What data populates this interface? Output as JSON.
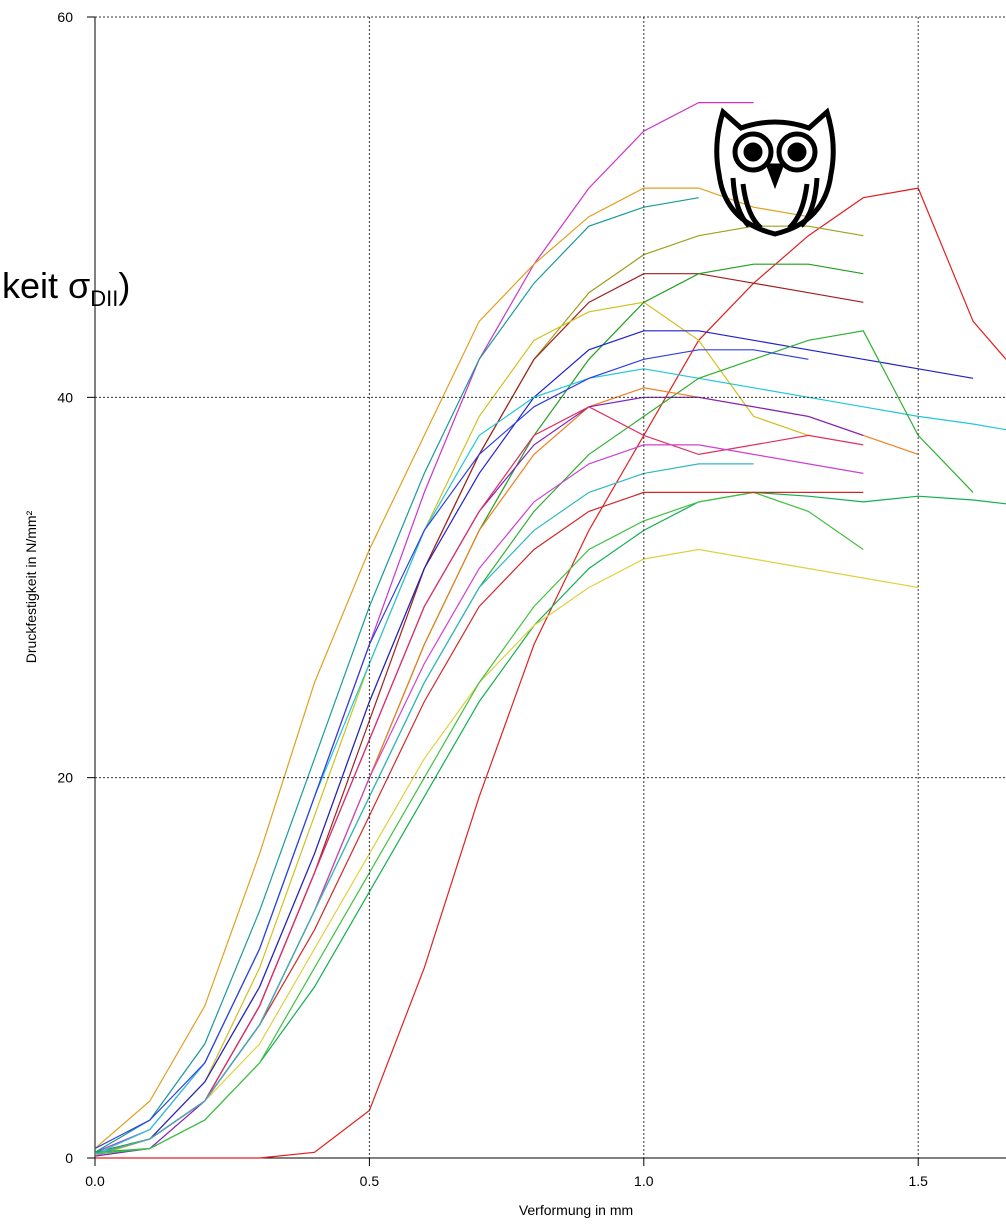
{
  "chart_data": {
    "type": "line",
    "xlabel": "Verformung in mm",
    "ylabel": "Druckfestigkeit in N/mm²",
    "annotation": {
      "text": "keit σ",
      "sub": "DII",
      "end": ")"
    },
    "xlim": [
      0,
      1.66
    ],
    "ylim": [
      0,
      60
    ],
    "xticks": [
      {
        "value": 0,
        "label": "0.0"
      },
      0.5,
      {
        "value": 1,
        "label": "1.0"
      },
      1.5
    ],
    "yticks": [
      0,
      20,
      40,
      60
    ],
    "grid": true,
    "x": [
      0,
      0.1,
      0.2,
      0.3,
      0.4,
      0.5,
      0.6,
      0.7,
      0.8,
      0.9,
      1.0,
      1.1,
      1.2,
      1.3,
      1.4,
      1.5,
      1.6,
      1.66
    ],
    "series": [
      {
        "color": "#cc33cc",
        "values": [
          0.3,
          1.5,
          5,
          11,
          19,
          27,
          35,
          42,
          47,
          51,
          54,
          55.5,
          55.5,
          null,
          null,
          null,
          null,
          null
        ]
      },
      {
        "color": "#e0a020",
        "values": [
          0.5,
          3,
          8,
          16,
          25,
          32,
          38,
          44,
          47,
          49.5,
          51,
          51,
          50,
          49.5,
          null,
          null,
          null,
          null
        ]
      },
      {
        "color": "#1a9a9a",
        "values": [
          0.3,
          2,
          6,
          13,
          21,
          29,
          36,
          42,
          46,
          49,
          50,
          50.5,
          null,
          null,
          null,
          null,
          null,
          null
        ]
      },
      {
        "color": "#e02020",
        "values": [
          0,
          0,
          0,
          0,
          0.3,
          2.5,
          10,
          19,
          27,
          33,
          38,
          43,
          46,
          48.5,
          50.5,
          51,
          44,
          42
        ]
      },
      {
        "color": "#a0a020",
        "values": [
          0.2,
          1,
          4,
          9,
          16,
          24,
          31,
          37,
          42,
          45.5,
          47.5,
          48.5,
          49,
          49,
          48.5,
          null,
          null,
          null
        ]
      },
      {
        "color": "#a02020",
        "values": [
          0.2,
          1,
          3,
          8,
          15,
          23,
          31,
          37,
          42,
          45,
          46.5,
          46.5,
          46,
          45.5,
          45,
          null,
          null,
          null
        ]
      },
      {
        "color": "#20a020",
        "values": [
          0.3,
          1,
          3,
          7,
          13,
          20,
          27,
          33,
          38,
          42,
          45,
          46.5,
          47,
          47,
          46.5,
          null,
          null,
          null
        ]
      },
      {
        "color": "#d0c020",
        "values": [
          0.1,
          1,
          4,
          10,
          18,
          26,
          33,
          39,
          43,
          44.5,
          45,
          43,
          39,
          38,
          null,
          null,
          null,
          null
        ]
      },
      {
        "color": "#2020cc",
        "values": [
          0.2,
          1,
          4,
          9,
          16,
          24,
          31,
          36,
          40,
          42.5,
          43.5,
          43.5,
          43,
          42.5,
          42,
          41.5,
          41,
          null
        ]
      },
      {
        "color": "#20c8d8",
        "values": [
          0.2,
          1.5,
          5,
          11,
          19,
          26,
          33,
          38,
          40,
          41,
          41.5,
          41,
          40.5,
          40,
          39.5,
          39,
          38.6,
          38.3
        ]
      },
      {
        "color": "#30b030",
        "values": [
          0.2,
          1,
          3,
          7,
          13,
          19,
          25,
          30,
          34,
          37,
          39,
          41,
          42,
          43,
          43.5,
          38,
          35,
          null
        ]
      },
      {
        "color": "#f08020",
        "values": [
          0.2,
          1,
          3,
          7,
          13,
          20,
          27,
          33,
          37,
          39.5,
          40.5,
          40,
          39.5,
          39,
          38,
          37,
          null,
          null
        ]
      },
      {
        "color": "#8020c0",
        "values": [
          0.1,
          0.5,
          3,
          8,
          15,
          22,
          29,
          34,
          37.5,
          39.5,
          40,
          40,
          39.5,
          39,
          38,
          null,
          null,
          null
        ]
      },
      {
        "color": "#e03060",
        "values": [
          0.2,
          1,
          3,
          8,
          15,
          22,
          29,
          34,
          38,
          39.5,
          38,
          37,
          37.5,
          38,
          37.5,
          null,
          null,
          null
        ]
      },
      {
        "color": "#10b050",
        "values": [
          0.3,
          0.5,
          2,
          5,
          9,
          14,
          19,
          24,
          28,
          31,
          33,
          34.5,
          35,
          34.8,
          34.5,
          34.8,
          34.6,
          34.4
        ]
      },
      {
        "color": "#e0d040",
        "values": [
          0.2,
          1,
          3,
          6,
          11,
          16,
          21,
          25,
          28,
          30,
          31.5,
          32,
          31.5,
          31,
          30.5,
          30,
          null,
          null
        ]
      },
      {
        "color": "#40c040",
        "values": [
          0.2,
          0.5,
          2,
          5,
          10,
          15,
          20,
          25,
          29,
          32,
          33.5,
          34.5,
          35,
          34,
          32,
          null,
          null,
          null
        ]
      },
      {
        "color": "#d02828",
        "values": [
          0.2,
          1,
          3,
          7,
          12,
          18,
          24,
          29,
          32,
          34,
          35,
          35,
          35,
          35,
          35,
          null,
          null,
          null
        ]
      },
      {
        "color": "#3040e0",
        "values": [
          0.5,
          2,
          5,
          11,
          19,
          27,
          33,
          37,
          39.5,
          41,
          42,
          42.5,
          42.5,
          42,
          null,
          null,
          null,
          null
        ]
      },
      {
        "color": "#d040d0",
        "values": [
          0.2,
          1,
          3,
          7,
          13,
          20,
          26,
          31,
          34.5,
          36.5,
          37.5,
          37.5,
          37,
          36.5,
          36,
          null,
          null,
          null
        ]
      },
      {
        "color": "#30b8c0",
        "values": [
          0.2,
          1,
          3,
          7,
          13,
          19,
          25,
          30,
          33,
          35,
          36,
          36.5,
          36.5,
          null,
          null,
          null,
          null,
          null
        ]
      }
    ]
  }
}
